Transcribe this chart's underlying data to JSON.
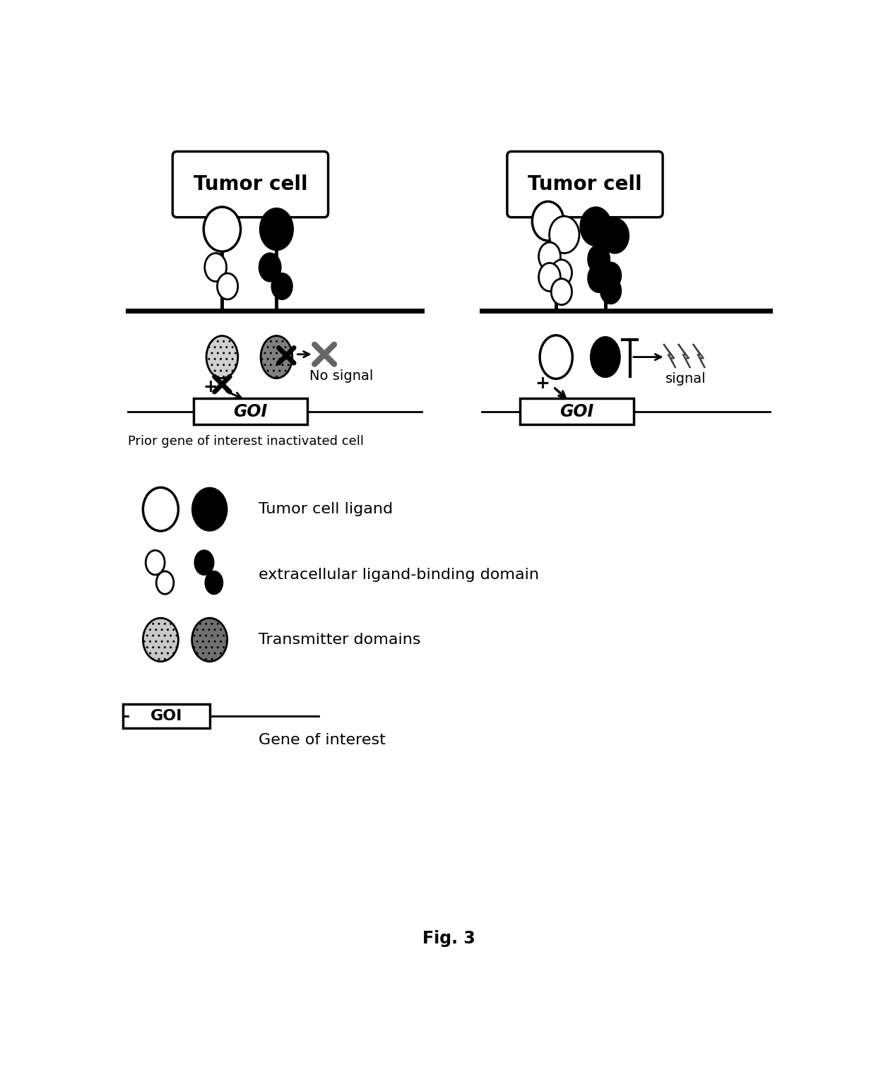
{
  "bg_color": "#ffffff",
  "title": "Fig. 3",
  "panel_left_caption": "Prior gene of interest inactivated cell",
  "legend_tumor_ligand": "Tumor cell ligand",
  "legend_extracell": "extracellular ligand-binding domain",
  "legend_transmitter": "Transmitter domains",
  "goi_label": "GOI",
  "gene_of_interest": "Gene of interest",
  "no_signal_label": "No signal",
  "signal_label": "signal",
  "tumor_cell_label": "Tumor cell"
}
